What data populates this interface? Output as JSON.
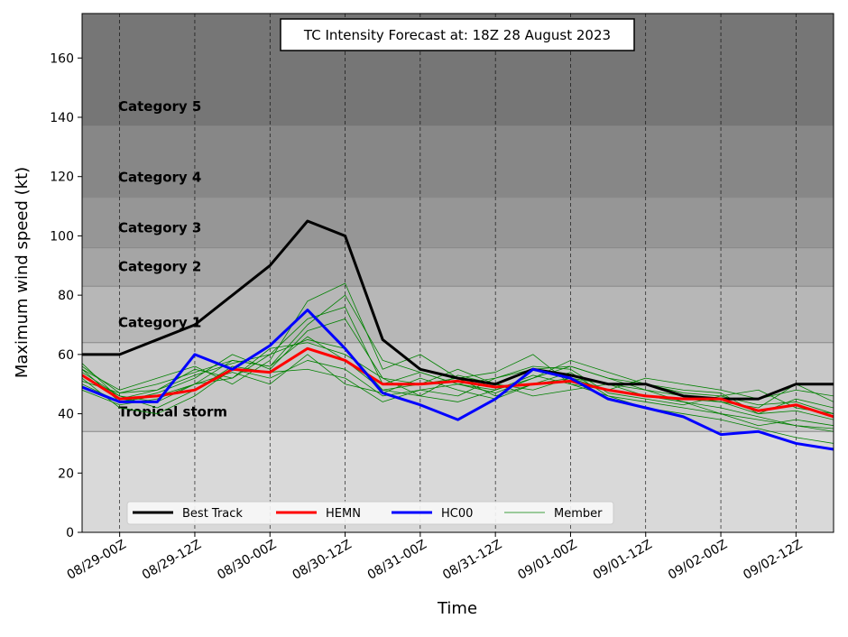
{
  "chart_data": {
    "type": "line",
    "title": "TC Intensity Forecast at: 18Z 28 August 2023",
    "xlabel": "Time",
    "ylabel": "Maximum wind speed (kt)",
    "categories": [
      null,
      "08/29-00Z",
      null,
      "08/29-12Z",
      null,
      "08/30-00Z",
      null,
      "08/30-12Z",
      null,
      "08/31-00Z",
      null,
      "08/31-12Z",
      null,
      "09/01-00Z",
      null,
      "09/01-12Z",
      null,
      "09/02-00Z",
      null,
      "09/02-12Z",
      null
    ],
    "ylim": [
      0,
      175
    ],
    "yticks": [
      0,
      20,
      40,
      60,
      80,
      100,
      120,
      140,
      160
    ],
    "background": "#d9d9d9",
    "bands": [
      {
        "label": "Tropical storm",
        "from": 34,
        "to": 64,
        "color": "#c8c8c8"
      },
      {
        "label": "Category 1",
        "from": 64,
        "to": 83,
        "color": "#b7b7b7"
      },
      {
        "label": "Category 2",
        "from": 83,
        "to": 96,
        "color": "#a5a5a5"
      },
      {
        "label": "Category 3",
        "from": 96,
        "to": 113,
        "color": "#969696"
      },
      {
        "label": "Category 4",
        "from": 113,
        "to": 137,
        "color": "#878787"
      },
      {
        "label": "Category 5",
        "from": 137,
        "to": 175,
        "color": "#767676"
      }
    ],
    "members": {
      "name": "Member",
      "color": "#008000",
      "values": [
        [
          56,
          47,
          50,
          54,
          58,
          56,
          70,
          80,
          58,
          54,
          50,
          52,
          55,
          56,
          52,
          50,
          47,
          46,
          43,
          44,
          40
        ],
        [
          54,
          46,
          44,
          50,
          52,
          60,
          65,
          62,
          48,
          46,
          44,
          48,
          53,
          50,
          46,
          44,
          42,
          40,
          38,
          36,
          35
        ],
        [
          52,
          42,
          40,
          46,
          55,
          52,
          58,
          55,
          46,
          48,
          50,
          47,
          52,
          58,
          54,
          50,
          48,
          47,
          40,
          45,
          42
        ],
        [
          50,
          44,
          47,
          52,
          60,
          55,
          68,
          72,
          52,
          50,
          55,
          50,
          48,
          52,
          50,
          48,
          44,
          40,
          36,
          38,
          36
        ],
        [
          55,
          48,
          52,
          56,
          50,
          58,
          78,
          84,
          55,
          60,
          52,
          54,
          60,
          50,
          48,
          52,
          50,
          48,
          45,
          48,
          46
        ],
        [
          48,
          43,
          45,
          50,
          54,
          50,
          60,
          50,
          47,
          52,
          48,
          45,
          50,
          54,
          46,
          42,
          40,
          38,
          35,
          32,
          30
        ],
        [
          57,
          45,
          48,
          55,
          52,
          62,
          64,
          60,
          52,
          46,
          53,
          50,
          46,
          48,
          50,
          46,
          45,
          44,
          42,
          50,
          44
        ],
        [
          53,
          46,
          42,
          48,
          56,
          54,
          55,
          52,
          44,
          48,
          46,
          52,
          56,
          55,
          47,
          45,
          43,
          46,
          48,
          42,
          40
        ],
        [
          51,
          47,
          48,
          53,
          57,
          60,
          72,
          76,
          50,
          54,
          50,
          48,
          52,
          56,
          52,
          48,
          46,
          44,
          40,
          41,
          38
        ],
        [
          55,
          44,
          46,
          50,
          58,
          56,
          66,
          58,
          48,
          50,
          52,
          46,
          50,
          52,
          48,
          46,
          44,
          42,
          39,
          36,
          34
        ]
      ]
    },
    "series": [
      {
        "name": "Best Track",
        "color": "#000000",
        "values": [
          60,
          60,
          65,
          70,
          80,
          90,
          105,
          100,
          65,
          55,
          52,
          50,
          55,
          53,
          50,
          50,
          46,
          45,
          45,
          50,
          50
        ]
      },
      {
        "name": "HEMN",
        "color": "#ff0000",
        "values": [
          53,
          45,
          46,
          48,
          55,
          54,
          62,
          58,
          50,
          50,
          51,
          49,
          50,
          51,
          48,
          46,
          45,
          45,
          41,
          43,
          39
        ]
      },
      {
        "name": "HC00",
        "color": "#0000ff",
        "values": [
          49,
          44,
          44,
          60,
          55,
          63,
          75,
          62,
          47,
          43,
          38,
          45,
          55,
          52,
          45,
          42,
          39,
          33,
          34,
          30,
          28
        ]
      }
    ]
  }
}
